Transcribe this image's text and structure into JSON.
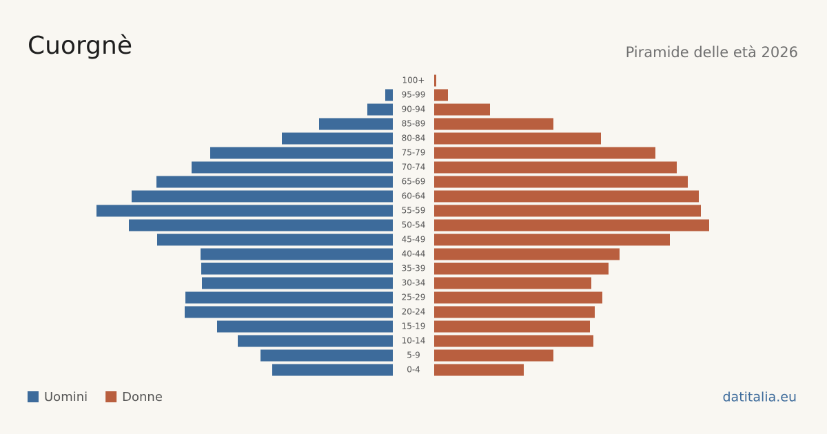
{
  "chart_data": {
    "type": "pyramid",
    "title": "Cuorgnè",
    "subtitle": "Piramide delle età 2026",
    "categories": [
      "100+",
      "95-99",
      "90-94",
      "85-89",
      "80-84",
      "75-79",
      "70-74",
      "65-69",
      "60-64",
      "55-59",
      "50-54",
      "45-49",
      "40-44",
      "35-39",
      "30-34",
      "25-29",
      "20-24",
      "15-19",
      "10-14",
      "5-9",
      "0-4"
    ],
    "series": [
      {
        "name": "Uomini",
        "color": "#3d6b9b",
        "values": [
          0,
          11,
          37,
          107,
          161,
          265,
          292,
          343,
          379,
          430,
          383,
          342,
          279,
          278,
          277,
          301,
          302,
          255,
          225,
          192,
          175
        ]
      },
      {
        "name": "Donne",
        "color": "#b95f3f",
        "values": [
          3,
          20,
          81,
          173,
          242,
          321,
          352,
          368,
          384,
          387,
          399,
          342,
          269,
          253,
          228,
          244,
          233,
          226,
          231,
          173,
          130
        ]
      }
    ],
    "source": "datitalia.eu"
  }
}
